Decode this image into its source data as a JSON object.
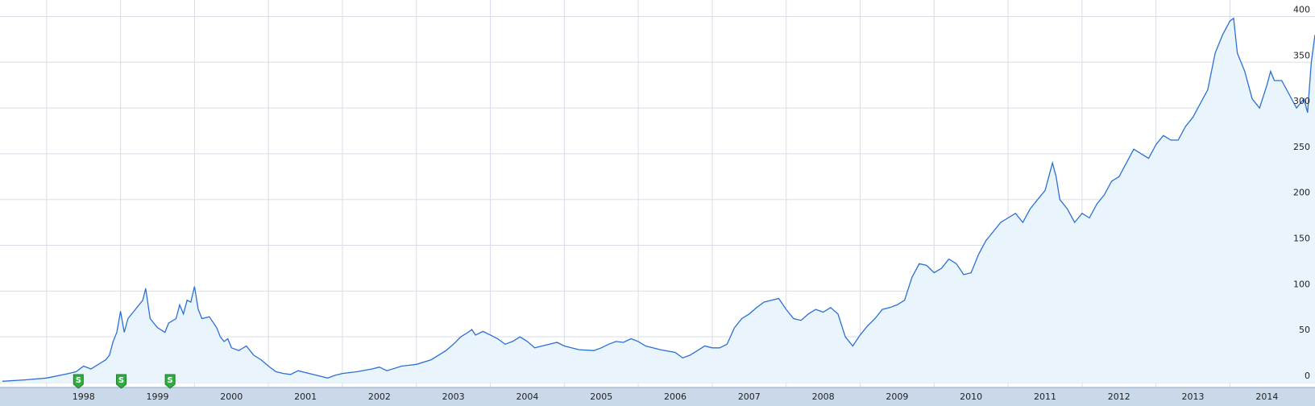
{
  "chart_data": {
    "type": "area",
    "x": [
      1997.4,
      1997.7,
      1998.0,
      1998.3,
      1998.4,
      1998.5,
      1998.6,
      1998.7,
      1998.8,
      1998.85,
      1998.9,
      1998.95,
      1999.0,
      1999.05,
      1999.1,
      1999.2,
      1999.3,
      1999.34,
      1999.4,
      1999.5,
      1999.6,
      1999.65,
      1999.75,
      1999.8,
      1999.85,
      1999.9,
      1999.95,
      2000.0,
      2000.05,
      2000.1,
      2000.2,
      2000.3,
      2000.35,
      2000.4,
      2000.45,
      2000.5,
      2000.6,
      2000.7,
      2000.8,
      2000.9,
      2001.0,
      2001.1,
      2001.2,
      2001.3,
      2001.4,
      2001.5,
      2001.6,
      2001.7,
      2001.8,
      2001.9,
      2002.0,
      2002.2,
      2002.4,
      2002.5,
      2002.6,
      2002.8,
      2003.0,
      2003.2,
      2003.4,
      2003.5,
      2003.6,
      2003.7,
      2003.75,
      2003.8,
      2003.9,
      2004.0,
      2004.1,
      2004.2,
      2004.3,
      2004.4,
      2004.5,
      2004.6,
      2004.7,
      2004.8,
      2004.9,
      2005.0,
      2005.2,
      2005.4,
      2005.5,
      2005.6,
      2005.7,
      2005.8,
      2005.9,
      2006.0,
      2006.1,
      2006.3,
      2006.5,
      2006.6,
      2006.7,
      2006.8,
      2006.9,
      2007.0,
      2007.1,
      2007.2,
      2007.3,
      2007.4,
      2007.5,
      2007.6,
      2007.7,
      2007.8,
      2007.9,
      2008.0,
      2008.1,
      2008.2,
      2008.3,
      2008.4,
      2008.5,
      2008.6,
      2008.7,
      2008.8,
      2008.9,
      2009.0,
      2009.1,
      2009.2,
      2009.3,
      2009.4,
      2009.5,
      2009.6,
      2009.7,
      2009.8,
      2009.9,
      2010.0,
      2010.1,
      2010.2,
      2010.3,
      2010.4,
      2010.5,
      2010.6,
      2010.7,
      2010.8,
      2010.9,
      2011.0,
      2011.1,
      2011.2,
      2011.3,
      2011.4,
      2011.5,
      2011.6,
      2011.65,
      2011.7,
      2011.8,
      2011.9,
      2012.0,
      2012.1,
      2012.2,
      2012.3,
      2012.4,
      2012.5,
      2012.6,
      2012.7,
      2012.8,
      2012.9,
      2013.0,
      2013.1,
      2013.2,
      2013.3,
      2013.4,
      2013.5,
      2013.6,
      2013.7,
      2013.8,
      2013.9,
      2014.0,
      2014.05,
      2014.1,
      2014.2,
      2014.3,
      2014.4,
      2014.5,
      2014.55,
      2014.6,
      2014.7,
      2014.8,
      2014.9,
      2015.0,
      2015.05,
      2015.1,
      2015.15
    ],
    "values": [
      1.5,
      3,
      5,
      10,
      12,
      18,
      15,
      20,
      25,
      30,
      45,
      55,
      78,
      55,
      70,
      80,
      90,
      103,
      70,
      60,
      55,
      65,
      70,
      85,
      75,
      90,
      88,
      105,
      80,
      70,
      72,
      60,
      50,
      45,
      48,
      38,
      35,
      40,
      30,
      25,
      18,
      12,
      10,
      9,
      13,
      11,
      9,
      7,
      5,
      8,
      10,
      12,
      15,
      17,
      13,
      18,
      20,
      25,
      35,
      42,
      50,
      55,
      58,
      52,
      56,
      52,
      48,
      42,
      45,
      50,
      45,
      38,
      40,
      42,
      44,
      40,
      36,
      35,
      38,
      42,
      45,
      44,
      48,
      45,
      40,
      36,
      33,
      27,
      30,
      35,
      40,
      38,
      38,
      42,
      60,
      70,
      75,
      82,
      88,
      90,
      92,
      80,
      70,
      68,
      75,
      80,
      77,
      82,
      75,
      50,
      40,
      52,
      62,
      70,
      80,
      82,
      85,
      90,
      115,
      130,
      128,
      120,
      125,
      135,
      130,
      118,
      120,
      140,
      155,
      165,
      175,
      180,
      185,
      175,
      190,
      200,
      210,
      240,
      225,
      200,
      190,
      175,
      185,
      180,
      195,
      205,
      220,
      225,
      240,
      255,
      250,
      245,
      260,
      270,
      265,
      265,
      280,
      290,
      305,
      320,
      360,
      380,
      395,
      398,
      360,
      340,
      310,
      300,
      325,
      340,
      330,
      330,
      315,
      300,
      310,
      295,
      350,
      380
    ],
    "color": "#2b6fd6",
    "fill": "#e9f4fc",
    "xlim": [
      1997.37,
      2015.15
    ],
    "xticks": [
      1998,
      1999,
      2000,
      2001,
      2002,
      2003,
      2004,
      2005,
      2006,
      2007,
      2008,
      2009,
      2010,
      2011,
      2012,
      2013,
      2014
    ],
    "ylim": [
      0,
      418
    ],
    "yticks": [
      0,
      50,
      100,
      150,
      200,
      250,
      300,
      350,
      400
    ],
    "grid": true,
    "split_markers": [
      {
        "x": 1998.43,
        "label": "S"
      },
      {
        "x": 1999.01,
        "label": "S"
      },
      {
        "x": 1999.67,
        "label": "S"
      }
    ]
  }
}
